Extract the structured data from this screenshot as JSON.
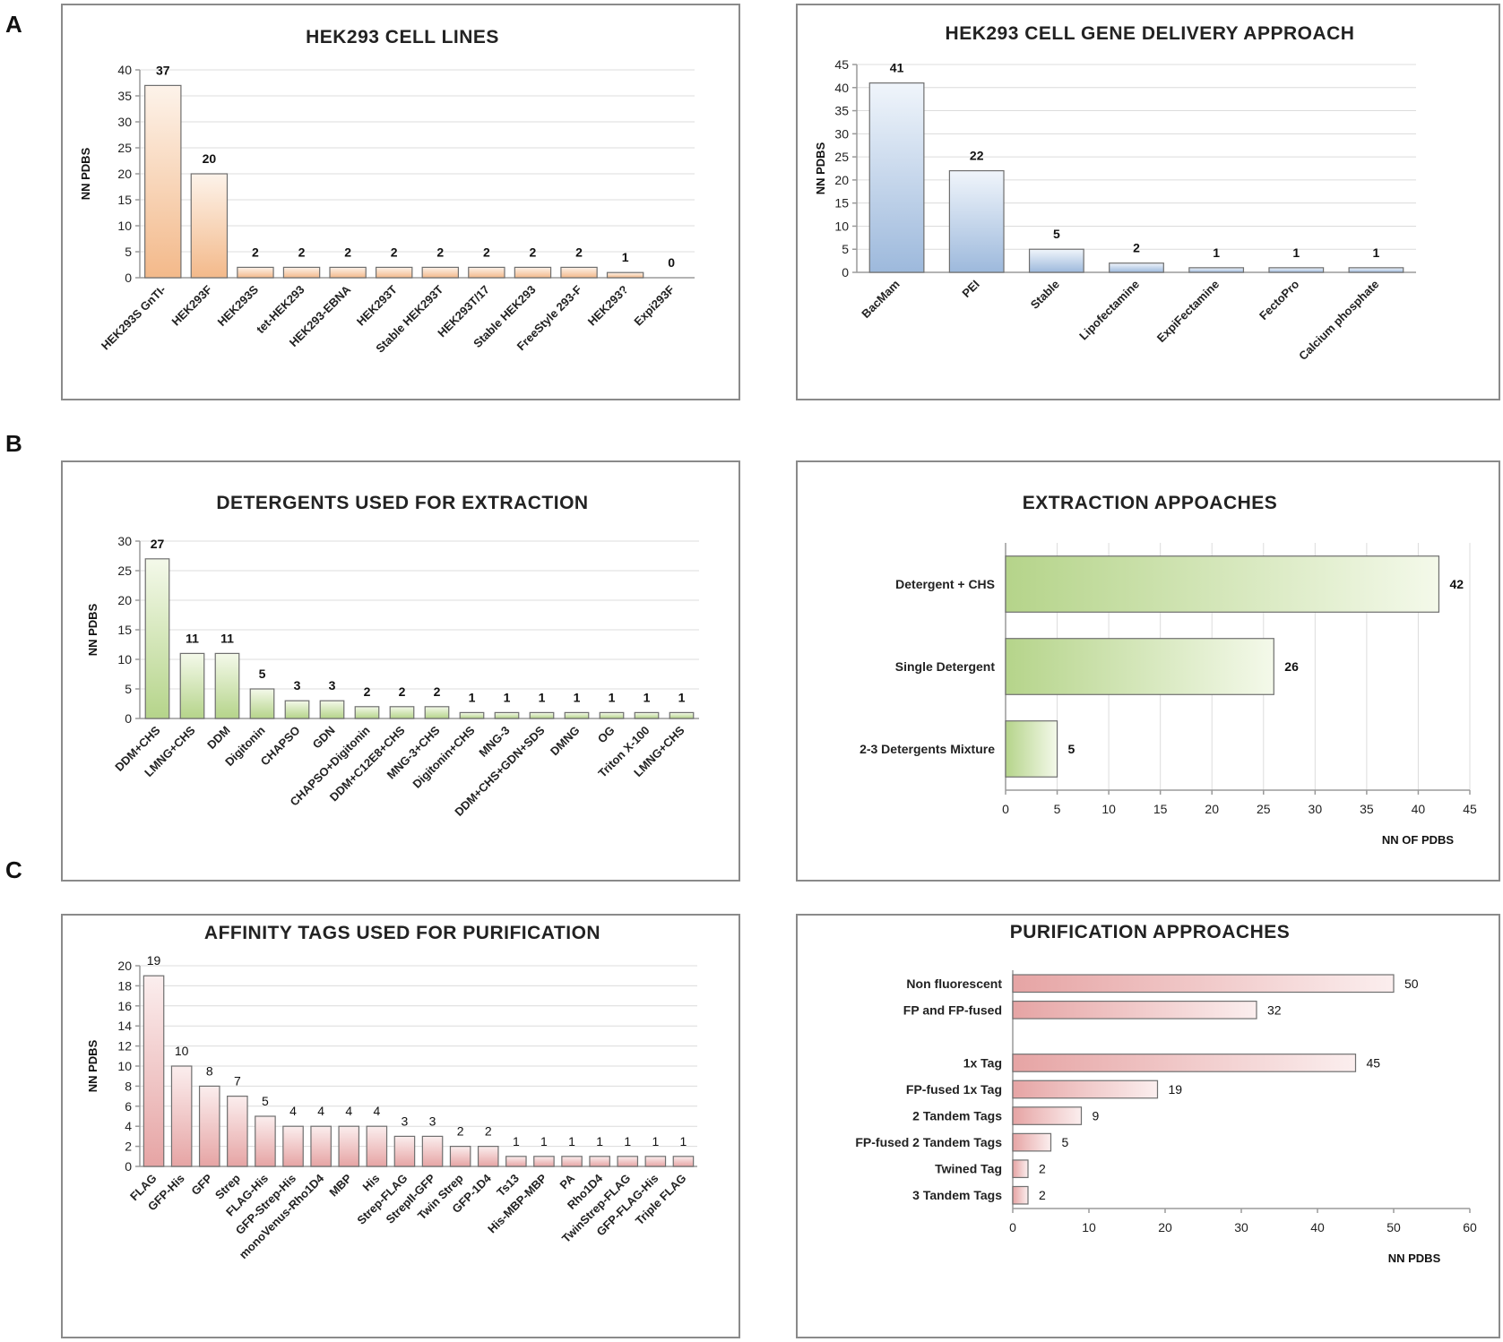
{
  "panel_letters": {
    "a": "A",
    "b": "B",
    "c": "C"
  },
  "colors": {
    "orange_light": "#fdf3ea",
    "orange_dark": "#f3b98a",
    "blue_light": "#f0f5fb",
    "blue_dark": "#9db9dc",
    "green_light": "#f4f9ea",
    "green_dark": "#b5d48a",
    "pink_light": "#fbeeee",
    "pink_dark": "#e6a4a4",
    "bar_stroke": "#6f6f6f"
  },
  "chart_data": [
    {
      "id": "cell-lines",
      "type": "bar",
      "title": "HEK293 CELL LINES",
      "ylabel": "NN PDBS",
      "xlabel": "",
      "ylim": [
        0,
        40
      ],
      "yticks": [
        0,
        5,
        10,
        15,
        20,
        25,
        30,
        35,
        40
      ],
      "grid": true,
      "categories": [
        "HEK293S GnTI-",
        "HEK293F",
        "HEK293S",
        "tet-HEK293",
        "HEK293-EBNA",
        "HEK293T",
        "Stable HEK293T",
        "HEK293T/17",
        "Stable HEK293",
        "FreeStyle 293-F",
        "HEK293?",
        "Expi293F"
      ],
      "values": [
        37,
        20,
        2,
        2,
        2,
        2,
        2,
        2,
        2,
        2,
        1,
        0
      ],
      "labels": [
        "37",
        "20",
        "2",
        "2",
        "2",
        "2",
        "2",
        "2",
        "2",
        "2",
        "1",
        "0"
      ]
    },
    {
      "id": "gene-delivery",
      "type": "bar",
      "title": "HEK293 CELL GENE DELIVERY APPROACH",
      "ylabel": "NN PDBS",
      "xlabel": "",
      "ylim": [
        0,
        45
      ],
      "yticks": [
        0,
        5,
        10,
        15,
        20,
        25,
        30,
        35,
        40,
        45
      ],
      "grid": true,
      "categories": [
        "BacMam",
        "PEI",
        "Stable",
        "Lipofectamine",
        "ExpiFectamine",
        "FectoPro",
        "Calcium phosphate"
      ],
      "values": [
        41,
        22,
        5,
        2,
        1,
        1,
        1
      ],
      "labels": [
        "41",
        "22",
        "5",
        "2",
        "1",
        "1",
        "1"
      ]
    },
    {
      "id": "detergents",
      "type": "bar",
      "title": "DETERGENTS USED FOR EXTRACTION",
      "ylabel": "NN PDBS",
      "xlabel": "",
      "ylim": [
        0,
        30
      ],
      "yticks": [
        0,
        5,
        10,
        15,
        20,
        25,
        30
      ],
      "grid": true,
      "categories": [
        "DDM+CHS",
        "LMNG+CHS",
        "DDM",
        "Digitonin",
        "CHAPSO",
        "GDN",
        "CHAPSO+Digitonin",
        "DDM+C12E8+CHS",
        "MNG-3+CHS",
        "Digitonin+CHS",
        "MNG-3",
        "DDM+CHS+GDN+SDS",
        "DMNG",
        "OG",
        "Triton X-100",
        "LMNG+CHS"
      ],
      "values": [
        27,
        11,
        11,
        5,
        3,
        3,
        2,
        2,
        2,
        1,
        1,
        1,
        1,
        1,
        1,
        1
      ],
      "labels": [
        "27",
        "11",
        "11",
        "5",
        "3",
        "3",
        "2",
        "2",
        "2",
        "1",
        "1",
        "1",
        "1",
        "1",
        "1",
        "1"
      ]
    },
    {
      "id": "extraction",
      "type": "bar-horizontal",
      "title": "EXTRACTION APPOACHES",
      "xlabel": "NN OF PDBS",
      "ylabel": "",
      "xlim": [
        0,
        45
      ],
      "xticks": [
        0,
        5,
        10,
        15,
        20,
        25,
        30,
        35,
        40,
        45
      ],
      "grid": true,
      "categories": [
        "Detergent + CHS",
        "Single Detergent",
        "2-3 Detergents Mixture"
      ],
      "values": [
        42,
        26,
        5
      ],
      "labels": [
        "42",
        "26",
        "5"
      ]
    },
    {
      "id": "affinity-tags",
      "type": "bar",
      "title": "AFFINITY TAGS USED FOR PURIFICATION",
      "ylabel": "NN PDBS",
      "xlabel": "",
      "ylim": [
        0,
        20
      ],
      "yticks": [
        0,
        2,
        4,
        6,
        8,
        10,
        12,
        14,
        16,
        18,
        20
      ],
      "grid": true,
      "categories": [
        "FLAG",
        "GFP-His",
        "GFP",
        "Strep",
        "FLAG-His",
        "GFP-Strep-His",
        "monoVenus-Rho1D4",
        "MBP",
        "His",
        "Strep-FLAG",
        "StrepII-GFP",
        "Twin Strep",
        "GFP-1D4",
        "Ts13",
        "His-MBP-MBP",
        "PA",
        "Rho1D4",
        "TwinStrep-FLAG",
        "GFP-FLAG-His",
        "Triple FLAG"
      ],
      "values": [
        19,
        10,
        8,
        7,
        5,
        4,
        4,
        4,
        4,
        3,
        3,
        2,
        2,
        1,
        1,
        1,
        1,
        1,
        1,
        1
      ],
      "labels": [
        "19",
        "10",
        "8",
        "7",
        "5",
        "4",
        "4",
        "4",
        "4",
        "3",
        "3",
        "2",
        "2",
        "1",
        "1",
        "1",
        "1",
        "1",
        "1",
        "1"
      ]
    },
    {
      "id": "purification",
      "type": "bar-horizontal",
      "title": "PURIFICATION APPROACHES",
      "xlabel": "NN PDBS",
      "ylabel": "",
      "xlim": [
        0,
        60
      ],
      "xticks": [
        0,
        10,
        20,
        30,
        40,
        50,
        60
      ],
      "grid": false,
      "categories": [
        "Non fluorescent",
        "FP and FP-fused",
        "1x Tag",
        "FP-fused 1x Tag",
        "2 Tandem Tags",
        "FP-fused 2 Tandem Tags",
        "Twined Tag",
        "3 Tandem Tags"
      ],
      "values": [
        50,
        32,
        45,
        19,
        9,
        5,
        2,
        2
      ],
      "labels": [
        "50",
        "32",
        "45",
        "19",
        "9",
        "5",
        "2",
        "2"
      ]
    }
  ]
}
